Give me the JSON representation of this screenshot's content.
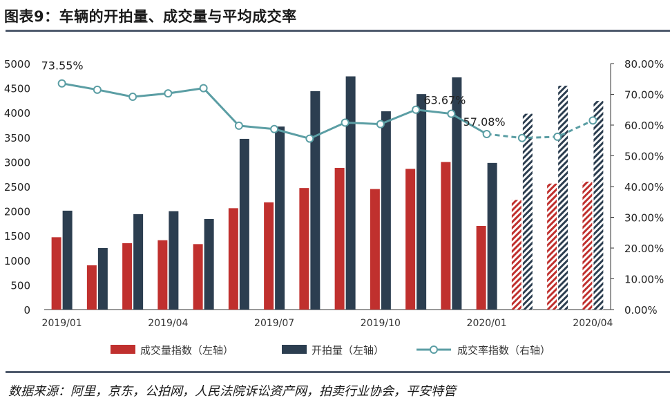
{
  "title": "图表9：车辆的开拍量、成交量与平均成交率",
  "source": "数据来源：阿里，京东，公拍网，人民法院诉讼资产网，拍卖行业协会，平安特管",
  "colors": {
    "red": "#c0302e",
    "navy": "#2c3e50",
    "teal": "#5b9ea4",
    "rule": "#4e5a6c"
  },
  "chart_data": {
    "type": "bar",
    "categories": [
      "2019/01",
      "2019/02",
      "2019/03",
      "2019/04",
      "2019/05",
      "2019/06",
      "2019/07",
      "2019/08",
      "2019/09",
      "2019/10",
      "2019/11",
      "2019/12",
      "2020/01",
      "2020/02",
      "2020/03",
      "2020/04"
    ],
    "x_tick_labels": [
      "2019/01",
      "",
      "",
      "2019/04",
      "",
      "",
      "2019/07",
      "",
      "",
      "2019/10",
      "",
      "",
      "2020/01",
      "",
      "",
      "2020/04"
    ],
    "series": [
      {
        "name": "成交量指数（左轴）",
        "type": "bar",
        "axis": "left",
        "values": [
          1470,
          900,
          1350,
          1410,
          1330,
          2060,
          2180,
          2470,
          2880,
          2450,
          2860,
          3000,
          1700,
          2230,
          2560,
          2600
        ],
        "estimated_from": 13
      },
      {
        "name": "开拍量（左轴）",
        "type": "bar",
        "axis": "left",
        "values": [
          2010,
          1250,
          1940,
          2000,
          1840,
          3470,
          3720,
          4440,
          4740,
          4030,
          4380,
          4720,
          2980,
          3980,
          4550,
          4240
        ],
        "estimated_from": 13
      },
      {
        "name": "成交率指数（右轴）",
        "type": "line",
        "axis": "right",
        "values": [
          73.55,
          71.5,
          69.2,
          70.3,
          72.0,
          59.8,
          58.7,
          55.6,
          60.8,
          60.3,
          65.0,
          63.67,
          57.08,
          55.8,
          56.2,
          61.5
        ],
        "estimated_from": 12
      }
    ],
    "annotations": [
      {
        "index": 0,
        "text": "73.55%"
      },
      {
        "index": 11,
        "text": "63.67%"
      },
      {
        "index": 12,
        "text": "57.08%"
      }
    ],
    "ylim_left": [
      0,
      5000
    ],
    "yticks_left": [
      "5000",
      "4500",
      "4000",
      "3500",
      "3000",
      "2500",
      "2000",
      "1500",
      "1000",
      "500",
      "0"
    ],
    "ylim_right": [
      0,
      80
    ],
    "yticks_right": [
      "80.00%",
      "70.00%",
      "60.00%",
      "50.00%",
      "40.00%",
      "30.00%",
      "20.00%",
      "10.00%",
      "0.00%"
    ],
    "legend_position": "bottom",
    "grid": false
  }
}
